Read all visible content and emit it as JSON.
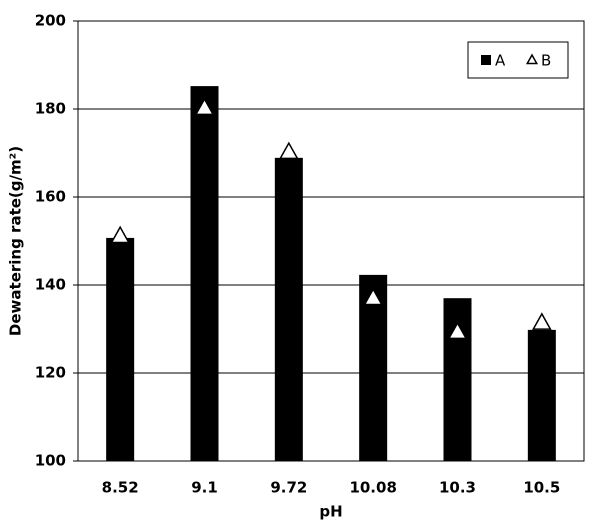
{
  "chart_data": {
    "type": "bar",
    "x_label": "pH",
    "y_label": "Dewatering rate(g/m²)",
    "categories": [
      "8.52",
      "9.1",
      "9.72",
      "10.08",
      "10.3",
      "10.5"
    ],
    "series": [
      {
        "name": "A",
        "type": "bar",
        "color": "#000000",
        "values": [
          150.7,
          185.2,
          168.9,
          142.3,
          137.0,
          129.8
        ]
      },
      {
        "name": "B",
        "type": "marker",
        "marker": "triangle",
        "color": "#ffffff",
        "values": [
          151.1,
          180.2,
          170.2,
          137.0,
          129.3,
          131.4
        ]
      }
    ],
    "ylim": [
      100,
      200
    ],
    "yticks": [
      100,
      120,
      140,
      160,
      180,
      200
    ],
    "grid": true,
    "legend": "top-right"
  }
}
